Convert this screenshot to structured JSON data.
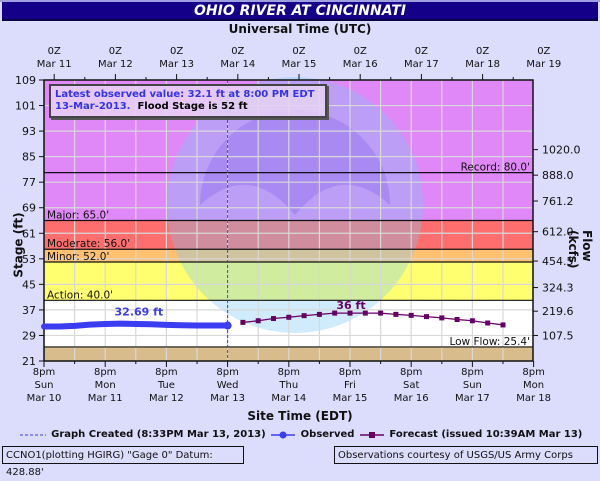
{
  "header": {
    "title": "OHIO RIVER AT CINCINNATI",
    "top_axis_title": "Universal Time (UTC)",
    "bottom_axis_title": "Site Time (EDT)",
    "left_axis_title": "Stage (ft)",
    "right_axis_title": "Flow (kcfs)"
  },
  "utc_ticks": [
    {
      "l1": "0Z",
      "l2": "Mar 11"
    },
    {
      "l1": "0Z",
      "l2": "Mar 12"
    },
    {
      "l1": "0Z",
      "l2": "Mar 13"
    },
    {
      "l1": "0Z",
      "l2": "Mar 14"
    },
    {
      "l1": "0Z",
      "l2": "Mar 15"
    },
    {
      "l1": "0Z",
      "l2": "Mar 16"
    },
    {
      "l1": "0Z",
      "l2": "Mar 17"
    },
    {
      "l1": "0Z",
      "l2": "Mar 18"
    },
    {
      "l1": "0Z",
      "l2": "Mar 19"
    }
  ],
  "edt_ticks": [
    {
      "l1": "8pm",
      "l2": "Sun",
      "l3": "Mar 10"
    },
    {
      "l1": "8pm",
      "l2": "Mon",
      "l3": "Mar 11"
    },
    {
      "l1": "8pm",
      "l2": "Tue",
      "l3": "Mar 12"
    },
    {
      "l1": "8pm",
      "l2": "Wed",
      "l3": "Mar 13"
    },
    {
      "l1": "8pm",
      "l2": "Thu",
      "l3": "Mar 14"
    },
    {
      "l1": "8pm",
      "l2": "Fri",
      "l3": "Mar 15"
    },
    {
      "l1": "8pm",
      "l2": "Sat",
      "l3": "Mar 16"
    },
    {
      "l1": "8pm",
      "l2": "Sun",
      "l3": "Mar 17"
    },
    {
      "l1": "8pm",
      "l2": "Mon",
      "l3": "Mar 18"
    }
  ],
  "infobox": {
    "line1": "Latest observed value: 32.1 ft at 8:00 PM EDT",
    "line2_date": "13-Mar-2013.",
    "line2_flood": "Flood Stage is 52 ft"
  },
  "legend": {
    "graph_created": "Graph Created (8:33PM Mar 13, 2013)",
    "observed": "Observed",
    "forecast": "Forecast (issued 10:39AM Mar 13)"
  },
  "footer": {
    "left": "CCNO1(plotting HGIRG) \"Gage 0\" Datum: 428.88'",
    "right": "Observations courtesy of USGS/US Army Corps"
  },
  "colors": {
    "title_bg": "#140088",
    "record_zone": "#e088f8",
    "major_zone": "#ff6e6e",
    "moderate_zone": "#ffc070",
    "minor_zone": "#ffff70",
    "normal_zone": "#ffffff",
    "low_zone": "#d8bc8c",
    "observed": "#3c3cf0",
    "forecast": "#660066"
  },
  "chart_data": {
    "type": "line",
    "title": "OHIO RIVER AT CINCINNATI",
    "xlabel": "Site Time (EDT)",
    "x2label": "Universal Time (UTC)",
    "ylabel": "Stage (ft)",
    "y2label": "Flow (kcfs)",
    "ylim": [
      21,
      109
    ],
    "yticks": [
      21,
      29,
      37,
      45,
      53,
      61,
      69,
      77,
      85,
      93,
      101,
      109
    ],
    "y2ticks": [
      {
        "stage": 29.0,
        "label": "107.5"
      },
      {
        "stage": 36.6,
        "label": "219.6"
      },
      {
        "stage": 44.0,
        "label": "324.3"
      },
      {
        "stage": 52.3,
        "label": "454.5"
      },
      {
        "stage": 61.5,
        "label": "612.0"
      },
      {
        "stage": 71.1,
        "label": "761.2"
      },
      {
        "stage": 79.2,
        "label": "888.0"
      },
      {
        "stage": 87.2,
        "label": "1020.0"
      }
    ],
    "grid": true,
    "thresholds": [
      {
        "name": "Record",
        "label": "Record: 80.0'",
        "value": 80.0
      },
      {
        "name": "Major",
        "label": "Major: 65.0'",
        "value": 65.0
      },
      {
        "name": "Moderate",
        "label": "Moderate: 56.0'",
        "value": 56.0
      },
      {
        "name": "Minor",
        "label": "Minor: 52.0'",
        "value": 52.0
      },
      {
        "name": "Action",
        "label": "Action: 40.0'",
        "value": 40.0
      },
      {
        "name": "Low Flow",
        "label": "Low Flow: 25.4'",
        "value": 25.4
      }
    ],
    "now_marker": {
      "label": "Graph Created",
      "x_day": 3.0
    },
    "series": [
      {
        "name": "Observed",
        "annotation": "32.69 ft",
        "x_days": [
          0,
          0.25,
          0.5,
          0.75,
          1.0,
          1.25,
          1.5,
          1.75,
          2.0,
          2.25,
          2.5,
          2.75,
          3.0
        ],
        "values": [
          31.8,
          31.8,
          32.0,
          32.4,
          32.6,
          32.69,
          32.6,
          32.5,
          32.3,
          32.2,
          32.1,
          32.1,
          32.1
        ]
      },
      {
        "name": "Forecast",
        "annotation": "36 ft",
        "x_days": [
          3.25,
          3.5,
          3.75,
          4.0,
          4.25,
          4.5,
          4.75,
          5.0,
          5.25,
          5.5,
          5.75,
          6.0,
          6.25,
          6.5,
          6.75,
          7.0,
          7.25,
          7.5
        ],
        "values": [
          33.1,
          33.6,
          34.3,
          34.7,
          35.2,
          35.6,
          36.0,
          36.0,
          36.0,
          36.0,
          35.6,
          35.3,
          34.9,
          34.5,
          34.0,
          33.6,
          32.9,
          32.3
        ]
      }
    ],
    "x_categories": [
      "8pm Sun Mar 10",
      "8pm Mon Mar 11",
      "8pm Tue Mar 12",
      "8pm Wed Mar 13",
      "8pm Thu Mar 14",
      "8pm Fri Mar 15",
      "8pm Sat Mar 16",
      "8pm Sun Mar 17",
      "8pm Mon Mar 18"
    ]
  }
}
